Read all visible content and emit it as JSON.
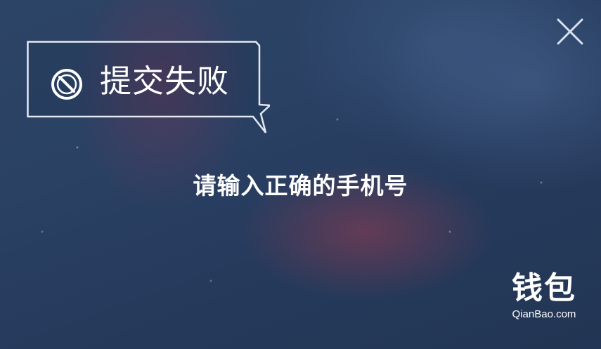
{
  "dialog": {
    "title": "提交失败",
    "title_icon": "forbidden-icon",
    "message": "请输入正确的手机号",
    "close_icon": "close-icon"
  },
  "brand": {
    "name_cn": "钱包",
    "name_en": "QianBao.com"
  },
  "colors": {
    "background": "#2a4164",
    "text": "#ffffff",
    "frame": "#dfe6ef"
  }
}
